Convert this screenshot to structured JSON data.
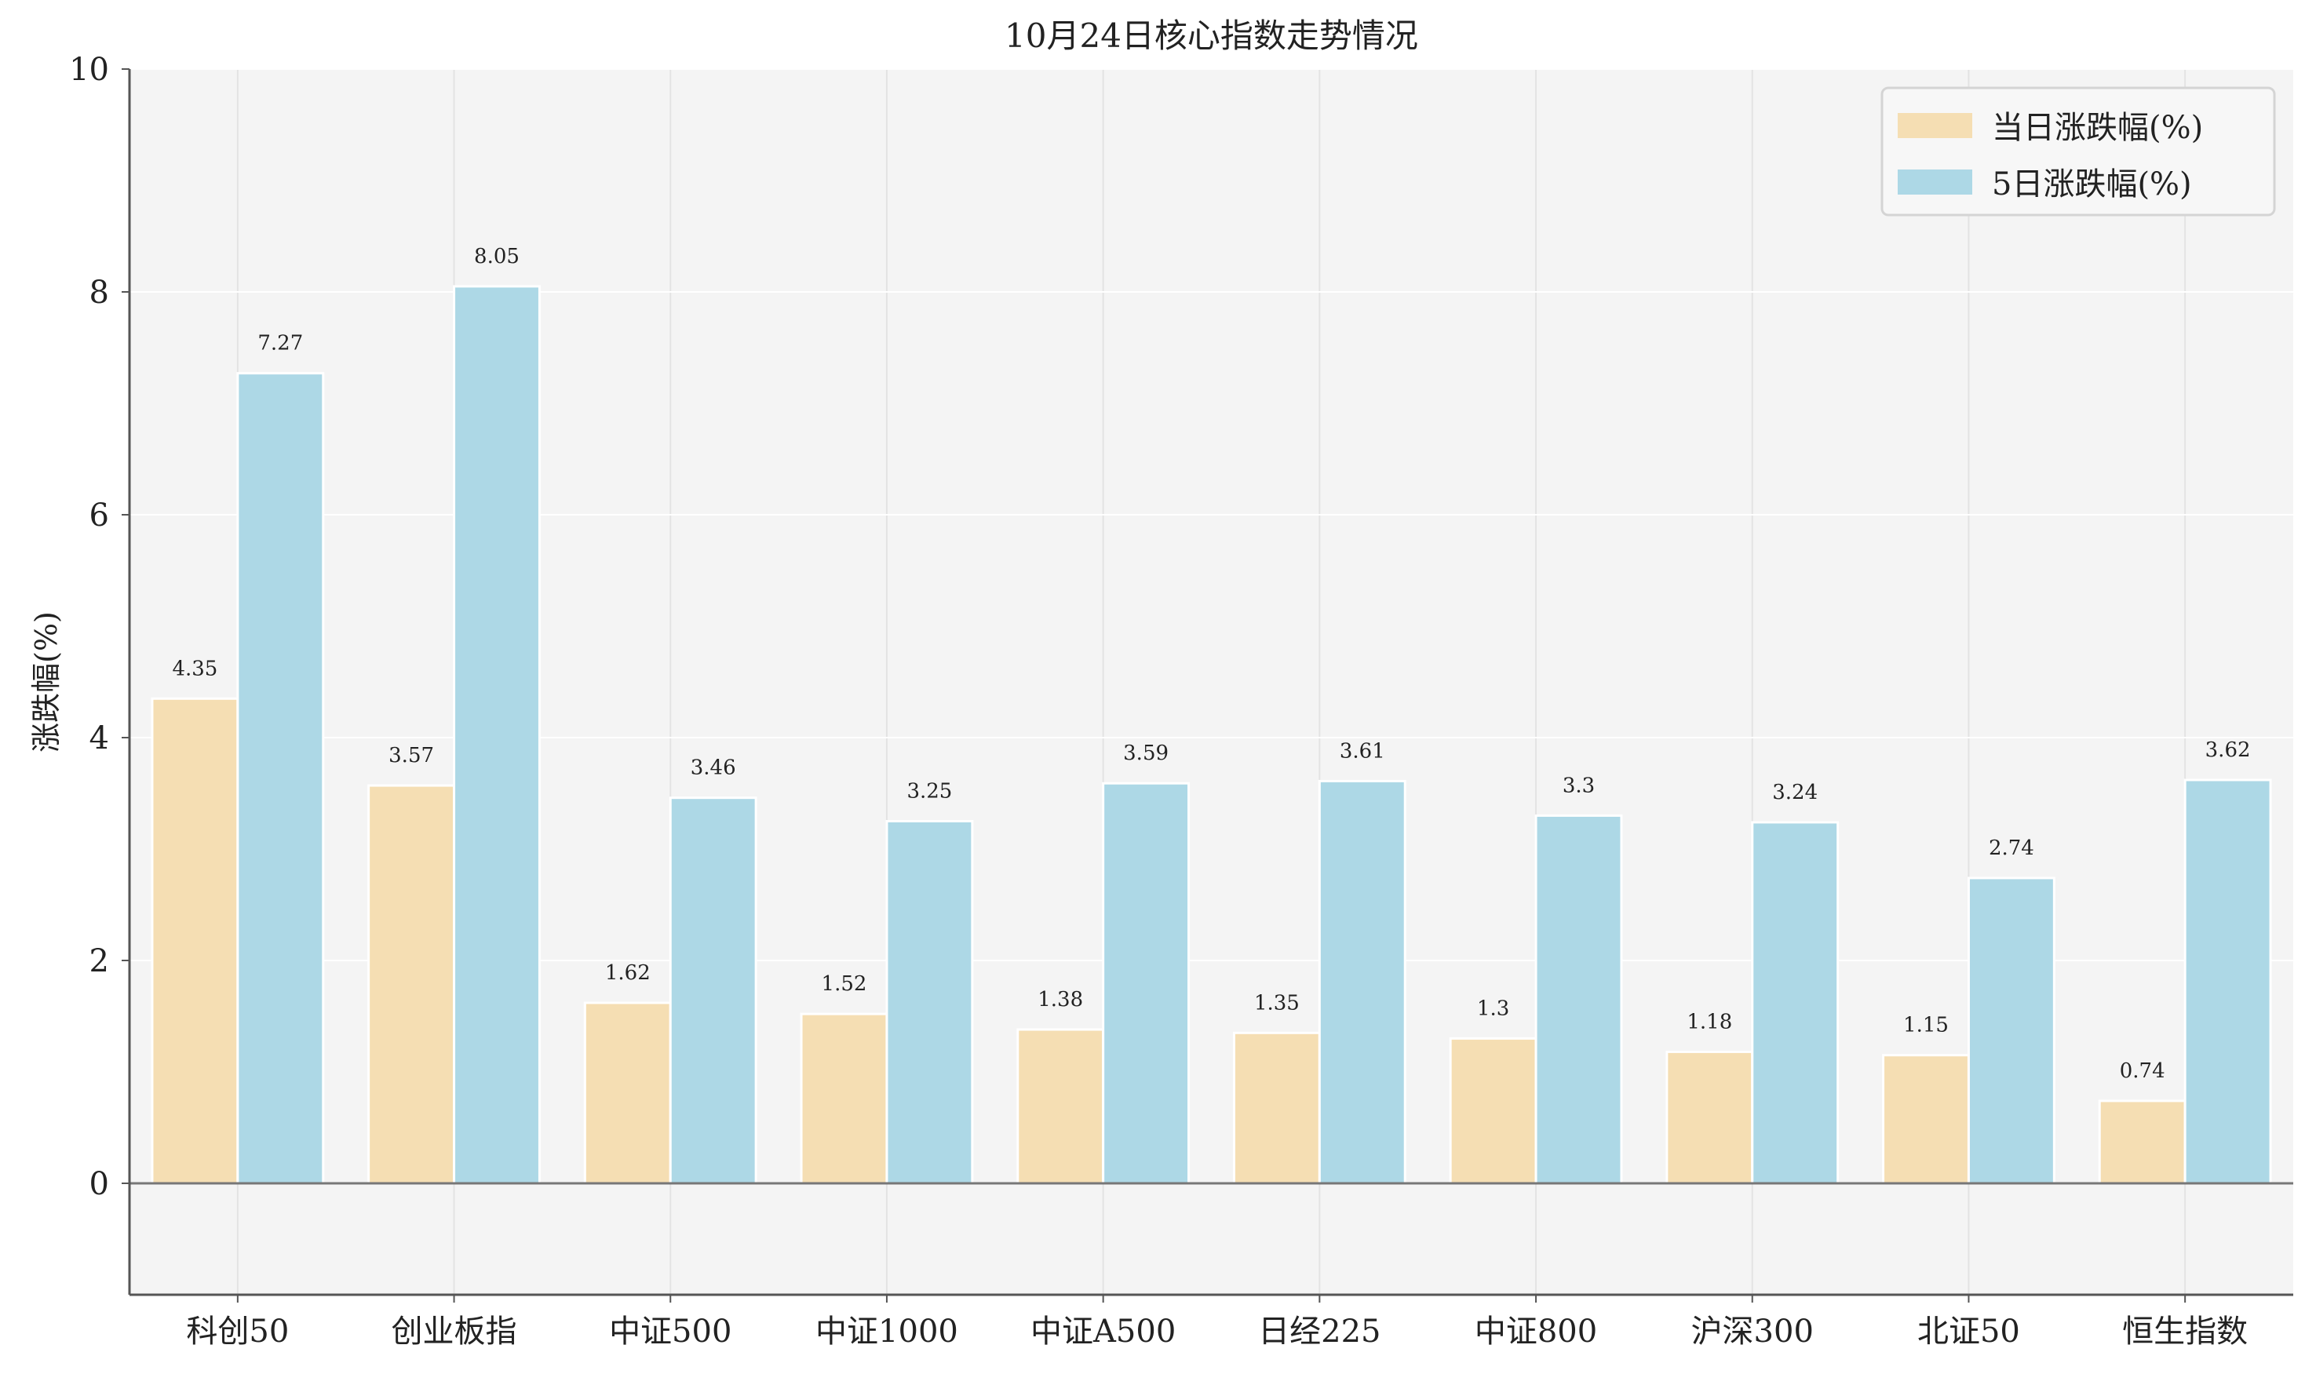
{
  "chart_data": {
    "type": "bar",
    "title": "10月24日核心指数走势情况",
    "xlabel": "",
    "ylabel": "涨跌幅(%)",
    "ylim": [
      -1,
      10
    ],
    "yticks": [
      0,
      2,
      4,
      6,
      8,
      10
    ],
    "grid": true,
    "legend_position": "top-right",
    "categories": [
      "科创50",
      "创业板指",
      "中证500",
      "中证1000",
      "中证A500",
      "日经225",
      "中证800",
      "沪深300",
      "北证50",
      "恒生指数"
    ],
    "series": [
      {
        "name": "当日涨跌幅(%)",
        "color": "#F5DEB3",
        "values": [
          4.35,
          3.57,
          1.62,
          1.52,
          1.38,
          1.35,
          1.3,
          1.18,
          1.15,
          0.74
        ],
        "labels": [
          "4.35",
          "3.57",
          "1.62",
          "1.52",
          "1.38",
          "1.35",
          "1.3",
          "1.18",
          "1.15",
          "0.74"
        ]
      },
      {
        "name": "5日涨跌幅(%)",
        "color": "#ADD8E6",
        "values": [
          7.27,
          8.05,
          3.46,
          3.25,
          3.59,
          3.61,
          3.3,
          3.24,
          2.74,
          3.62
        ],
        "labels": [
          "7.27",
          "8.05",
          "3.46",
          "3.25",
          "3.59",
          "3.61",
          "3.3",
          "3.24",
          "2.74",
          "3.62"
        ]
      }
    ],
    "colors": {
      "plot_background": "#F4F4F4",
      "grid": "#FFFFFF",
      "axis": "#555555"
    }
  }
}
